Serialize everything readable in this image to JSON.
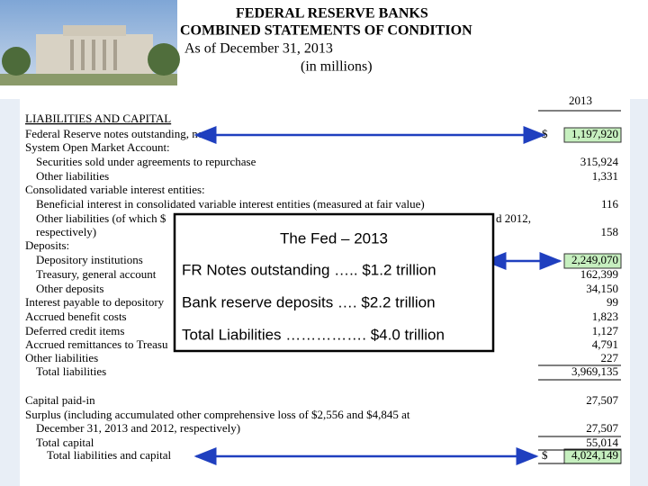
{
  "header": {
    "title": "FEDERAL RESERVE BANKS",
    "subtitle": "COMBINED STATEMENTS OF CONDITION",
    "date": "As of December 31, 2013",
    "units": "(in millions)"
  },
  "table": {
    "column_header": "2013",
    "section": "LIABILITIES AND CAPITAL",
    "rows": [
      {
        "label": "Federal Reserve notes outstanding, net",
        "currency": "$",
        "value": "1,197,920"
      },
      {
        "label": "System Open Market Account:"
      },
      {
        "label": "Securities sold under agreements to repurchase",
        "value": "315,924"
      },
      {
        "label": "Other liabilities",
        "value": "1,331"
      },
      {
        "label": "Consolidated variable interest entities:"
      },
      {
        "label": "Beneficial interest in consolidated variable interest entities (measured at fair value)",
        "value": "116"
      },
      {
        "label": "Other liabilities (of which $",
        "label_end": "d 2012,"
      },
      {
        "label": "respectively)",
        "value": "158"
      },
      {
        "label": "Deposits:"
      },
      {
        "label": "Depository institutions",
        "value": "2,249,070"
      },
      {
        "label": "Treasury, general account",
        "value": "162,399"
      },
      {
        "label": "Other deposits",
        "value": "34,150"
      },
      {
        "label": "Interest payable to depository",
        "value": "99"
      },
      {
        "label": "Accrued benefit costs",
        "value": "1,823"
      },
      {
        "label": "Deferred credit items",
        "value": "1,127"
      },
      {
        "label": "Accrued remittances to Treasu",
        "value": "4,791"
      },
      {
        "label": "Other liabilities",
        "value": "227"
      },
      {
        "label": "Total liabilities",
        "value": "3,969,135"
      },
      {
        "label": "Capital paid-in",
        "value": "27,507"
      },
      {
        "label": "Surplus (including accumulated other comprehensive loss of $2,556 and $4,845 at"
      },
      {
        "label": "December 31, 2013 and 2012, respectively)",
        "value": "27,507"
      },
      {
        "label": "Total capital",
        "value": "55,014"
      },
      {
        "label": "Total liabilities and capital",
        "currency": "$",
        "value": "4,024,149"
      }
    ]
  },
  "callout": {
    "title": "The Fed – 2013",
    "lines": [
      "FR Notes outstanding ….. $1.2 trillion",
      "Bank reserve deposits …. $2.2 trillion",
      "Total Liabilities ……………. $4.0 trillion"
    ]
  }
}
